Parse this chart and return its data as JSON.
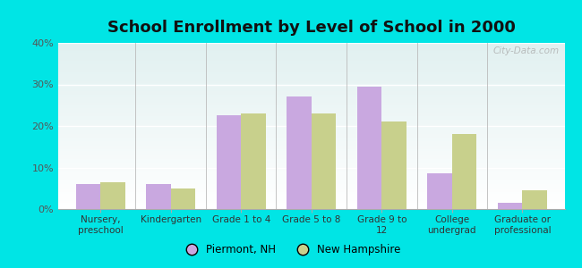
{
  "title": "School Enrollment by Level of School in 2000",
  "categories": [
    "Nursery,\npreschool",
    "Kindergarten",
    "Grade 1 to 4",
    "Grade 5 to 8",
    "Grade 9 to\n12",
    "College\nundergrad",
    "Graduate or\nprofessional"
  ],
  "piermont": [
    6.0,
    6.0,
    22.5,
    27.0,
    29.5,
    8.5,
    1.5
  ],
  "new_hampshire": [
    6.5,
    5.0,
    23.0,
    23.0,
    21.0,
    18.0,
    4.5
  ],
  "piermont_color": "#c9a8e0",
  "nh_color": "#c8d08c",
  "background_color": "#00e5e5",
  "ylim": [
    0,
    40
  ],
  "yticks": [
    0,
    10,
    20,
    30,
    40
  ],
  "ytick_labels": [
    "0%",
    "10%",
    "20%",
    "30%",
    "40%"
  ],
  "legend_label1": "Piermont, NH",
  "legend_label2": "New Hampshire",
  "watermark": "City-Data.com",
  "title_fontsize": 13,
  "label_fontsize": 7.5,
  "tick_fontsize": 8
}
